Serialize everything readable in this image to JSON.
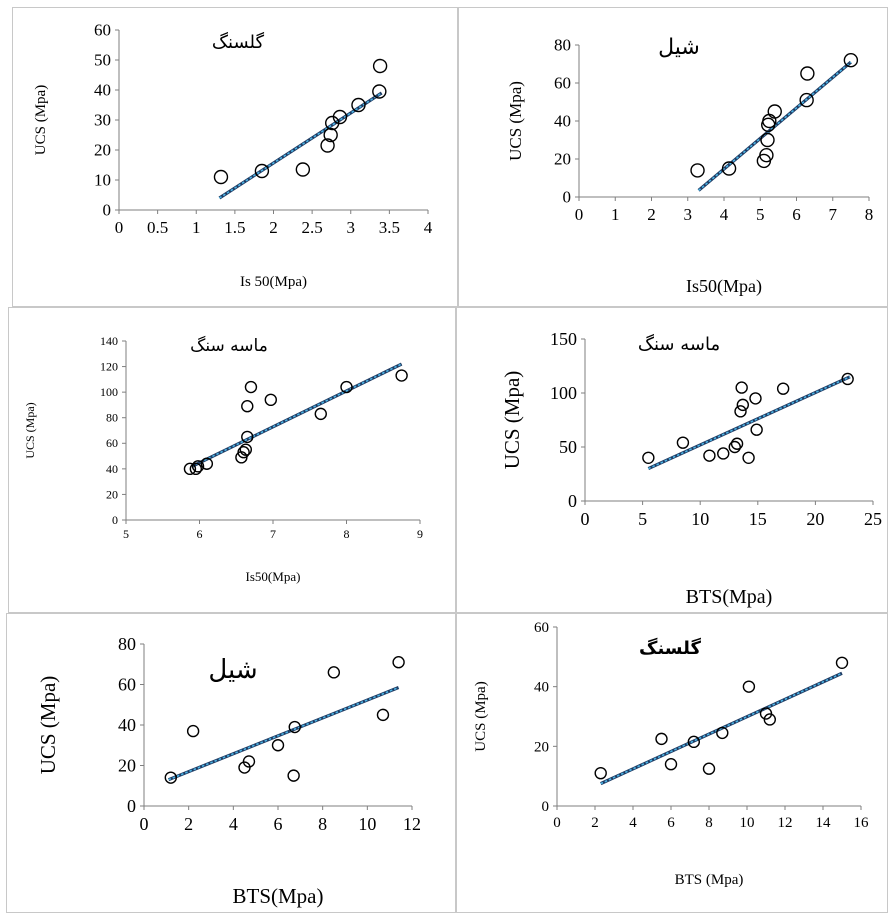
{
  "chart_data": [
    {
      "type": "scatter",
      "title": "گلسنگ",
      "xlabel": "Is 50(Mpa)",
      "ylabel": "UCS (Mpa)",
      "xlim": [
        0,
        4
      ],
      "ylim": [
        0,
        60
      ],
      "xticks": [
        "0",
        "0.5",
        "1",
        "1.5",
        "2",
        "2.5",
        "3",
        "3.5",
        "4"
      ],
      "yticks": [
        "0",
        "10",
        "20",
        "30",
        "40",
        "50",
        "60"
      ],
      "trendline": {
        "x": [
          1.3,
          3.4
        ],
        "y": [
          4,
          39
        ]
      },
      "series": [
        {
          "x": [
            1.32,
            1.85,
            2.38,
            2.7,
            2.74,
            2.76,
            2.86,
            3.1,
            3.37,
            3.38
          ],
          "y": [
            11,
            13,
            13.5,
            21.5,
            25,
            29,
            31,
            35,
            39.5,
            48
          ]
        }
      ]
    },
    {
      "type": "scatter",
      "title": "شیل",
      "xlabel": "Is50(Mpa)",
      "ylabel": "UCS (Mpa)",
      "xlim": [
        0,
        8
      ],
      "ylim": [
        0,
        80
      ],
      "xticks": [
        "0",
        "1",
        "2",
        "3",
        "4",
        "5",
        "6",
        "7",
        "8"
      ],
      "yticks": [
        "0",
        "20",
        "40",
        "60",
        "80"
      ],
      "trendline": {
        "x": [
          3.3,
          7.5
        ],
        "y": [
          3.5,
          71
        ]
      },
      "series": [
        {
          "x": [
            3.27,
            4.14,
            5.1,
            5.17,
            5.2,
            5.22,
            5.25,
            5.4,
            6.28,
            6.3,
            7.5
          ],
          "y": [
            14,
            15,
            19,
            22,
            30,
            38,
            40,
            45,
            51,
            65,
            72
          ]
        }
      ]
    },
    {
      "type": "scatter",
      "title": "ماسه سنگ",
      "xlabel": "Is50(Mpa)",
      "ylabel": "UCS (Mpa)",
      "xlim": [
        5,
        9
      ],
      "ylim": [
        0,
        140
      ],
      "xticks": [
        "5",
        "6",
        "7",
        "8",
        "9"
      ],
      "yticks": [
        "0",
        "20",
        "40",
        "60",
        "80",
        "100",
        "120",
        "140"
      ],
      "trendline": {
        "x": [
          5.9,
          8.75
        ],
        "y": [
          42,
          122
        ]
      },
      "series": [
        {
          "x": [
            5.87,
            5.95,
            5.98,
            6.1,
            6.57,
            6.6,
            6.63,
            6.65,
            6.65,
            6.7,
            6.97,
            7.65,
            8.0,
            8.75
          ],
          "y": [
            40,
            40,
            42,
            44,
            49,
            53,
            55,
            65,
            89,
            104,
            94,
            83,
            104,
            113
          ]
        }
      ]
    },
    {
      "type": "scatter",
      "title": "ماسه سنگ",
      "xlabel": "BTS(Mpa)",
      "ylabel": "UCS (Mpa)",
      "xlim": [
        0,
        25
      ],
      "ylim": [
        0,
        150
      ],
      "xticks": [
        "0",
        "5",
        "10",
        "15",
        "20",
        "25"
      ],
      "yticks": [
        "0",
        "50",
        "100",
        "150"
      ],
      "trendline": {
        "x": [
          5.5,
          23
        ],
        "y": [
          30,
          115
        ]
      },
      "series": [
        {
          "x": [
            5.5,
            8.5,
            10.8,
            12,
            13,
            13.2,
            13.5,
            13.6,
            13.7,
            14.2,
            14.8,
            14.9,
            17.2,
            22.8
          ],
          "y": [
            40,
            54,
            42,
            44,
            50,
            53,
            83,
            105,
            89,
            40,
            95,
            66,
            104,
            113
          ]
        }
      ]
    },
    {
      "type": "scatter",
      "title": "شیل",
      "xlabel": "BTS(Mpa)",
      "ylabel": "UCS (Mpa)",
      "xlim": [
        0,
        12
      ],
      "ylim": [
        0,
        80
      ],
      "xticks": [
        "0",
        "2",
        "4",
        "6",
        "8",
        "10",
        "12"
      ],
      "yticks": [
        "0",
        "20",
        "40",
        "60",
        "80"
      ],
      "trendline": {
        "x": [
          1.1,
          11.4
        ],
        "y": [
          13,
          58.5
        ]
      },
      "series": [
        {
          "x": [
            1.2,
            2.2,
            4.5,
            4.7,
            6.0,
            6.7,
            6.75,
            8.5,
            10.7,
            11.4
          ],
          "y": [
            14,
            37,
            19,
            22,
            30,
            15,
            39,
            66,
            45,
            71
          ]
        }
      ]
    },
    {
      "type": "scatter",
      "title": "گلسنگ",
      "xlabel": "BTS (Mpa)",
      "ylabel": "UCS (Mpa)",
      "xlim": [
        0,
        16
      ],
      "ylim": [
        0,
        60
      ],
      "xticks": [
        "0",
        "2",
        "4",
        "6",
        "8",
        "10",
        "12",
        "14",
        "16"
      ],
      "yticks": [
        "0",
        "20",
        "40",
        "60"
      ],
      "trendline": {
        "x": [
          2.3,
          15
        ],
        "y": [
          7.5,
          44.5
        ]
      },
      "series": [
        {
          "x": [
            2.3,
            5.5,
            6.0,
            7.2,
            8.0,
            8.7,
            10.1,
            11.0,
            11.2,
            15.0
          ],
          "y": [
            11,
            22.5,
            14,
            21.5,
            12.5,
            24.5,
            40,
            31,
            29,
            48
          ]
        }
      ]
    }
  ],
  "style": {
    "trend_dark": "#1f3b63",
    "trend_light": "#4bb3e3",
    "marker": "#000000"
  }
}
